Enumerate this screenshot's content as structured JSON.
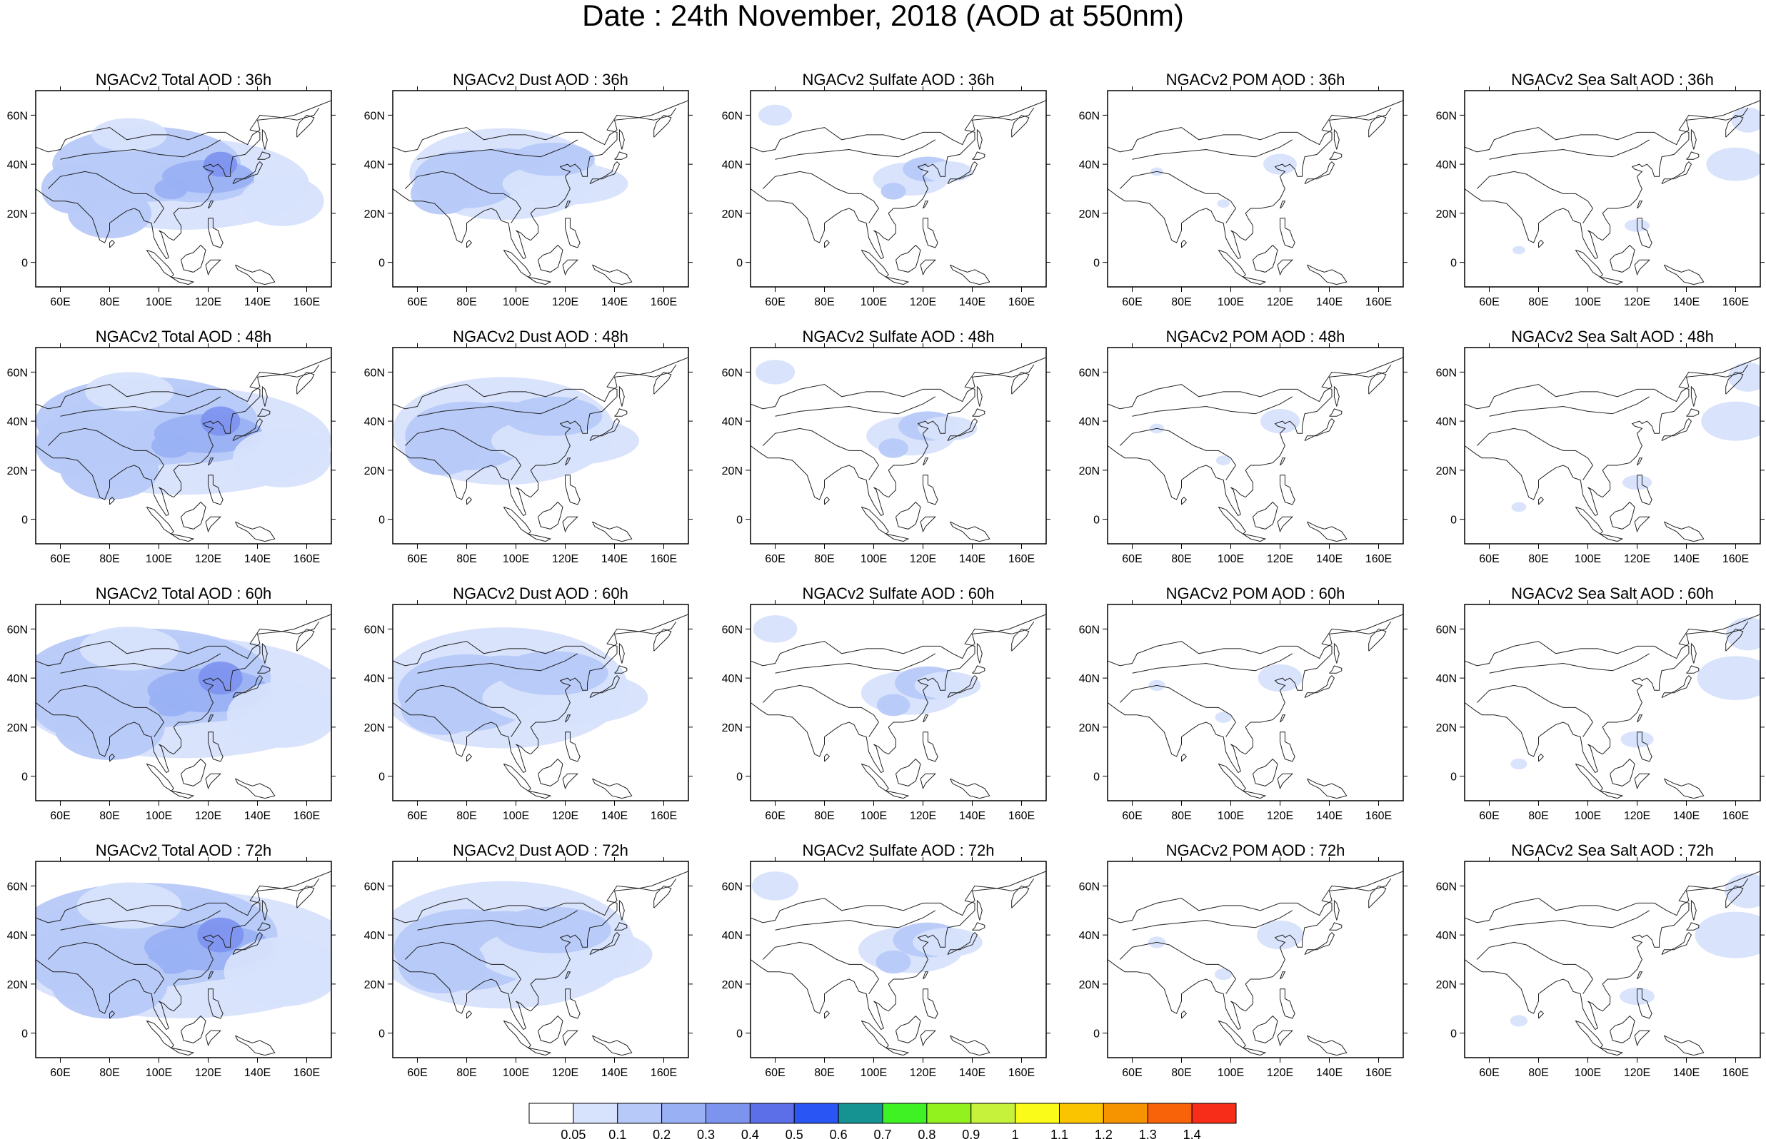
{
  "title": "Date : 24th November, 2018 (AOD at 550nm)",
  "chart_data": {
    "type": "heatmap",
    "map_extent": {
      "lon": [
        50,
        170
      ],
      "lat": [
        -10,
        70
      ]
    },
    "x_ticks": [
      "60E",
      "80E",
      "100E",
      "120E",
      "140E",
      "160E"
    ],
    "x_tick_values": [
      60,
      80,
      100,
      120,
      140,
      160
    ],
    "y_ticks": [
      "0",
      "20N",
      "40N",
      "60N"
    ],
    "y_tick_values": [
      0,
      20,
      40,
      60
    ],
    "colorbar": {
      "labels": [
        "0.05",
        "0.1",
        "0.2",
        "0.3",
        "0.4",
        "0.5",
        "0.6",
        "0.7",
        "0.8",
        "0.9",
        "1",
        "1.1",
        "1.2",
        "1.3",
        "1.4"
      ],
      "colors": [
        "#ffffff",
        "#d7e2fc",
        "#b7c9f8",
        "#99b1f4",
        "#7d94ef",
        "#5c6ee8",
        "#2a55f5",
        "#159393",
        "#3ff224",
        "#92f21d",
        "#c6f23c",
        "#fbfb19",
        "#fbc400",
        "#f69400",
        "#f86208",
        "#f72d19"
      ]
    },
    "panels": [
      {
        "title": "NGACv2 Total AOD : 36h",
        "species": "total",
        "hour": 36
      },
      {
        "title": "NGACv2 Dust AOD : 36h",
        "species": "dust",
        "hour": 36
      },
      {
        "title": "NGACv2 Sulfate AOD : 36h",
        "species": "sulfate",
        "hour": 36
      },
      {
        "title": "NGACv2 POM AOD : 36h",
        "species": "pom",
        "hour": 36
      },
      {
        "title": "NGACv2 Sea Salt AOD : 36h",
        "species": "seasalt",
        "hour": 36
      },
      {
        "title": "NGACv2 Total AOD : 48h",
        "species": "total",
        "hour": 48
      },
      {
        "title": "NGACv2 Dust AOD : 48h",
        "species": "dust",
        "hour": 48
      },
      {
        "title": "NGACv2 Sulfate AOD : 48h",
        "species": "sulfate",
        "hour": 48
      },
      {
        "title": "NGACv2 POM AOD : 48h",
        "species": "pom",
        "hour": 48
      },
      {
        "title": "NGACv2 Sea Salt AOD : 48h",
        "species": "seasalt",
        "hour": 48
      },
      {
        "title": "NGACv2 Total AOD : 60h",
        "species": "total",
        "hour": 60
      },
      {
        "title": "NGACv2 Dust AOD : 60h",
        "species": "dust",
        "hour": 60
      },
      {
        "title": "NGACv2 Sulfate AOD : 60h",
        "species": "sulfate",
        "hour": 60
      },
      {
        "title": "NGACv2 POM AOD : 60h",
        "species": "pom",
        "hour": 60
      },
      {
        "title": "NGACv2 Sea Salt AOD : 60h",
        "species": "seasalt",
        "hour": 60
      },
      {
        "title": "NGACv2 Total AOD : 72h",
        "species": "total",
        "hour": 72
      },
      {
        "title": "NGACv2 Dust AOD : 72h",
        "species": "dust",
        "hour": 72
      },
      {
        "title": "NGACv2 Sulfate AOD : 72h",
        "species": "sulfate",
        "hour": 72
      },
      {
        "title": "NGACv2 POM AOD : 72h",
        "species": "pom",
        "hour": 72
      },
      {
        "title": "NGACv2 Sea Salt  AOD : 72h",
        "species": "seasalt",
        "hour": 72
      }
    ]
  }
}
